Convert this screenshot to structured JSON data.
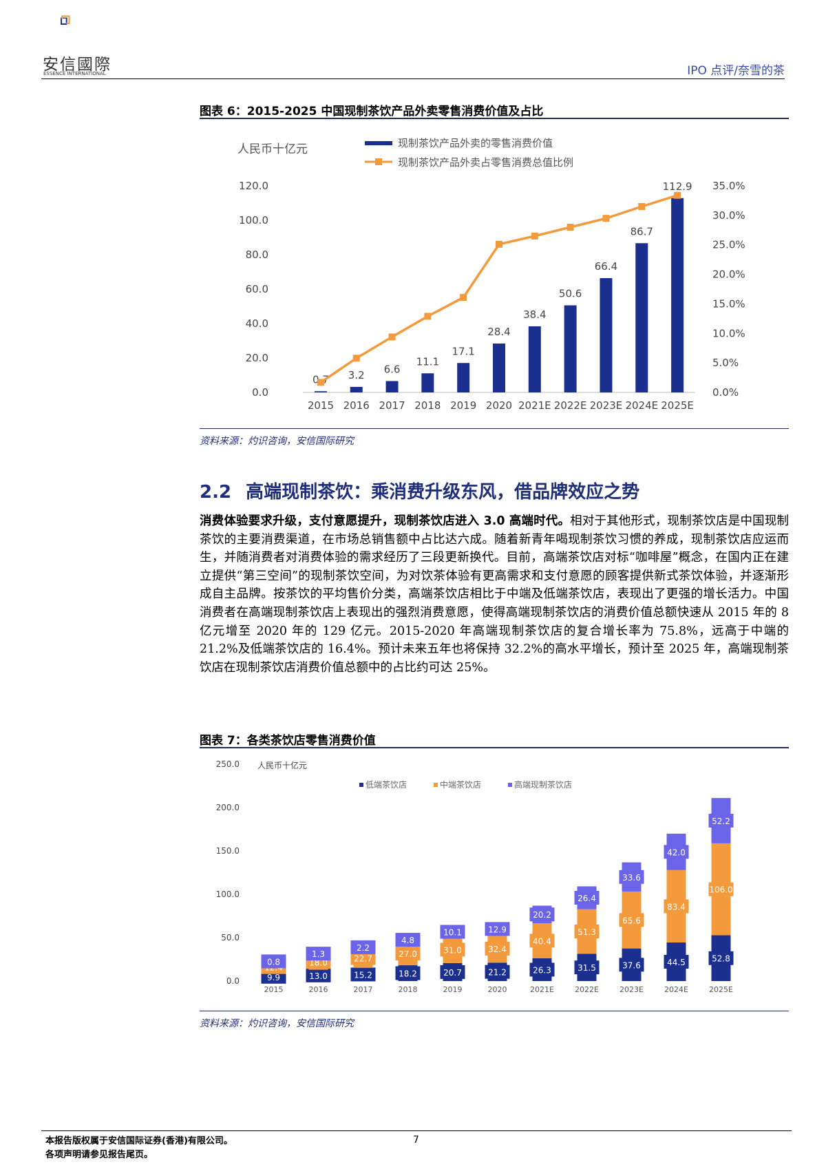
{
  "header": {
    "logo_text": "安信國際",
    "logo_sub": "ESSENCE INTERNATIONAL",
    "right_title": "IPO 点评/奈雪的茶"
  },
  "figure6": {
    "title": "图表 6：2015-2025 中国现制茶饮产品外卖零售消费价值及占比",
    "unit_label": "人民币十亿元",
    "source": "资料来源：灼识咨询，安信国际研究",
    "chart_data": {
      "type": "bar",
      "categories": [
        "2015",
        "2016",
        "2017",
        "2018",
        "2019",
        "2020",
        "2021E",
        "2022E",
        "2023E",
        "2024E",
        "2025E"
      ],
      "series": [
        {
          "name": "现制茶饮产品外卖的零售消费价值",
          "type": "bar",
          "axis": "left",
          "values": [
            0.7,
            3.2,
            6.6,
            11.1,
            17.1,
            28.4,
            38.4,
            50.6,
            66.4,
            86.7,
            112.9
          ],
          "labels": [
            "0.7",
            "3.2",
            "6.6",
            "11.1",
            "17.1",
            "28.4",
            "38.4",
            "50.6",
            "66.4",
            "86.7",
            "112.9"
          ]
        },
        {
          "name": "现制茶饮产品外卖占零售消费总值比例",
          "type": "line",
          "axis": "right",
          "values": [
            1.7,
            5.8,
            9.4,
            12.9,
            16.1,
            25.1,
            26.5,
            28.0,
            29.5,
            31.5,
            33.4
          ]
        }
      ],
      "left_axis": {
        "min": 0,
        "max": 120,
        "ticks": [
          "0.0",
          "20.0",
          "40.0",
          "60.0",
          "80.0",
          "100.0",
          "120.0"
        ]
      },
      "right_axis": {
        "min": 0,
        "max": 35,
        "ticks": [
          "0.0%",
          "5.0%",
          "10.0%",
          "15.0%",
          "20.0%",
          "25.0%",
          "30.0%",
          "35.0%"
        ]
      },
      "legend_position": "top",
      "colors": {
        "bar": "#1b2f8e",
        "line": "#f39a3c"
      }
    }
  },
  "section": {
    "number": "2.2",
    "title": "高端现制茶饮：乘消费升级东风，借品牌效应之势"
  },
  "paragraph": {
    "lead": "消费体验要求升级，支付意愿提升，现制茶饮店进入 3.0 高端时代。",
    "body": "相对于其他形式，现制茶饮店是中国现制茶饮的主要消费渠道，在市场总销售额中占比达六成。随着新青年喝现制茶饮习惯的养成，现制茶饮店应运而生，并随消费者对消费体验的需求经历了三段更新换代。目前，高端茶饮店对标“咖啡屋”概念，在国内正在建立提供“第三空间”的现制茶饮空间，为对饮茶体验有更高需求和支付意愿的顾客提供新式茶饮体验，并逐渐形成自主品牌。按茶饮的平均售价分类，高端茶饮店相比于中端及低端茶饮店，表现出了更强的增长活力。中国消费者在高端现制茶饮店上表现出的强烈消费意愿，使得高端现制茶饮店的消费价值总额快速从 2015 年的 8 亿元增至 2020 年的 129 亿元。2015-2020 年高端现制茶饮店的复合增长率为 75.8%，远高于中端的 21.2%及低端茶饮店的 16.4%。预计未来五年也将保持 32.2%的高水平增长，预计至 2025 年，高端现制茶饮店在现制茶饮店消费价值总额中的占比约可达 25%。"
  },
  "figure7": {
    "title": "图表 7：各类茶饮店零售消费价值",
    "unit_label": "人民币十亿元",
    "source": "资料来源：灼识咨询，安信国际研究",
    "chart_data": {
      "type": "bar",
      "stacked": true,
      "categories": [
        "2015",
        "2016",
        "2017",
        "2018",
        "2019",
        "2020",
        "2021E",
        "2022E",
        "2023E",
        "2024E",
        "2025E"
      ],
      "series": [
        {
          "name": "低端茶饮店",
          "values": [
            9.9,
            13.0,
            15.2,
            18.2,
            20.7,
            21.2,
            26.3,
            31.5,
            37.6,
            44.5,
            52.8
          ],
          "labels": [
            "9.9",
            "13.0",
            "15.2",
            "18.2",
            "20.7",
            "21.2",
            "26.3",
            "31.5",
            "37.6",
            "44.5",
            "52.8"
          ]
        },
        {
          "name": "中端茶饮店",
          "values": [
            12.4,
            18.0,
            22.7,
            27.0,
            31.0,
            32.4,
            40.4,
            51.3,
            65.6,
            83.4,
            106.0
          ],
          "labels": [
            "12.4",
            "18.0",
            "22.7",
            "27.0",
            "31.0",
            "32.4",
            "40.4",
            "51.3",
            "65.6",
            "83.4",
            "106.0"
          ]
        },
        {
          "name": "高端现制茶饮店",
          "values": [
            0.8,
            1.3,
            2.2,
            4.8,
            10.1,
            12.9,
            20.2,
            26.4,
            33.6,
            42.0,
            52.2
          ],
          "labels": [
            "0.8",
            "1.3",
            "2.2",
            "4.8",
            "10.1",
            "12.9",
            "20.2",
            "26.4",
            "33.6",
            "42.0",
            "52.2"
          ]
        }
      ],
      "y_axis": {
        "min": 0,
        "max": 250,
        "ticks": [
          "0.0",
          "50.0",
          "100.0",
          "150.0",
          "200.0",
          "250.0"
        ]
      },
      "legend_position": "top",
      "colors": {
        "low": "#1b2f8e",
        "mid": "#f39a3c",
        "high": "#6b63e8"
      }
    }
  },
  "footer": {
    "line1": "本报告版权属于安信国际证券(香港)有限公司。",
    "line2": "各项声明请参见报告尾页。",
    "page_number": "7"
  }
}
